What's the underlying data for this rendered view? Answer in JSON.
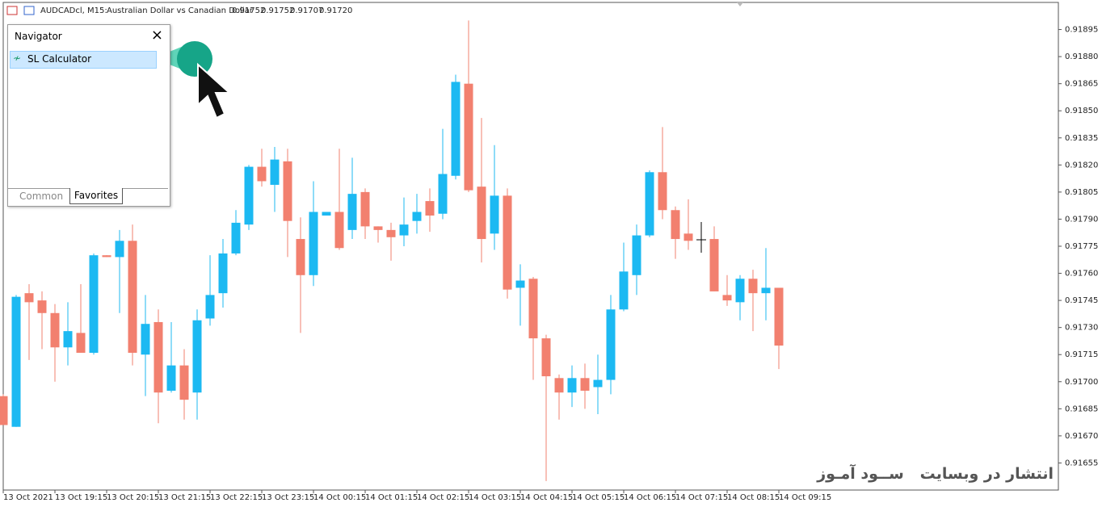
{
  "chart_data": {
    "type": "candlestick",
    "symbol": "AUDCADcl, M15:",
    "description": "Australian Dollar vs Canadian Dollar",
    "header_ohlc": [
      0.91752,
      0.91752,
      0.91707,
      {
        "value": 0.9172,
        "label": "0.91720"
      }
    ],
    "up_color": "#1cb9f2",
    "down_color": "#f2806f",
    "categories": [
      "13 Oct 2021",
      null,
      null,
      null,
      "13 Oct 19:15",
      null,
      null,
      null,
      "13 Oct 20:15",
      null,
      null,
      null,
      "13 Oct 21:15",
      null,
      null,
      null,
      "13 Oct 22:15",
      null,
      null,
      null,
      "13 Oct 23:15",
      null,
      null,
      null,
      "14 Oct 00:15",
      null,
      null,
      null,
      "14 Oct 01:15",
      null,
      null,
      null,
      "14 Oct 02:15",
      null,
      null,
      null,
      "14 Oct 03:15",
      null,
      null,
      null,
      "14 Oct 04:15",
      null,
      null,
      null,
      "14 Oct 05:15",
      null,
      null,
      null,
      "14 Oct 06:15",
      null,
      null,
      null,
      "14 Oct 07:15",
      null,
      null,
      null,
      "14 Oct 08:15",
      null,
      null,
      null,
      "14 Oct 09:15"
    ],
    "open": [
      0.91692,
      0.91675,
      0.91749,
      0.91745,
      0.91738,
      0.91719,
      0.91727,
      0.91716,
      0.9177,
      0.91769,
      0.91778,
      0.91715,
      0.91733,
      0.91695,
      0.91709,
      0.91694,
      0.91735,
      0.91749,
      0.91771,
      0.91787,
      0.91819,
      0.91809,
      0.91822,
      0.91779,
      0.91759,
      0.91792,
      0.91794,
      0.91784,
      0.91805,
      0.91786,
      0.91784,
      0.91781,
      0.91789,
      0.918,
      0.91793,
      0.91814,
      0.91865,
      0.91808,
      0.91782,
      0.91803,
      0.91752,
      0.91757,
      0.91724,
      0.91702,
      0.91694,
      0.91702,
      0.91697,
      0.91701,
      0.9174,
      0.91759,
      0.91781,
      0.91816,
      0.91795,
      0.91782,
      null,
      0.91779,
      0.91748,
      0.91744,
      0.91757,
      0.91749,
      0.91752
    ],
    "high": [
      0.91693,
      0.91748,
      0.91754,
      0.9175,
      0.91743,
      0.91744,
      0.91754,
      0.91771,
      0.9177,
      0.91784,
      0.91787,
      0.91748,
      0.9174,
      0.91733,
      0.91718,
      0.9174,
      0.9177,
      0.91779,
      0.91795,
      0.9182,
      0.91829,
      0.9183,
      0.91829,
      0.91791,
      0.91811,
      0.91794,
      0.91829,
      0.91824,
      0.91807,
      0.91786,
      0.91788,
      0.91802,
      0.91804,
      0.91807,
      0.9184,
      0.9187,
      0.919,
      0.91846,
      0.91831,
      0.91807,
      0.91765,
      0.91758,
      0.91726,
      0.91704,
      0.91709,
      0.9171,
      0.91715,
      0.91748,
      0.91777,
      0.91787,
      0.91817,
      0.91841,
      0.91797,
      0.91801,
      null,
      0.91786,
      0.91759,
      0.91759,
      0.91762,
      0.91774,
      0.91752
    ],
    "low": [
      0.91676,
      0.91675,
      0.91712,
      0.91718,
      0.917,
      0.91709,
      0.91716,
      0.91715,
      0.91769,
      0.91738,
      0.91709,
      0.91692,
      0.91677,
      0.91694,
      0.91679,
      0.91679,
      0.91731,
      0.91741,
      0.9177,
      0.91784,
      0.91808,
      0.91794,
      0.91769,
      0.91727,
      0.91753,
      0.91792,
      0.91773,
      0.91779,
      0.91779,
      0.91777,
      0.91767,
      0.91775,
      0.91782,
      0.91783,
      0.9179,
      0.91812,
      0.91805,
      0.91766,
      0.91773,
      0.91746,
      0.91731,
      0.91701,
      0.91645,
      0.91679,
      0.91686,
      0.91685,
      0.91682,
      0.91693,
      0.91739,
      0.91748,
      0.9178,
      0.9179,
      0.91768,
      0.91773,
      null,
      0.9175,
      0.91742,
      0.91734,
      0.91728,
      0.91734,
      0.91707
    ],
    "close": [
      0.91676,
      0.91747,
      0.91744,
      0.91738,
      0.91719,
      0.91728,
      0.91716,
      0.9177,
      0.91769,
      0.91778,
      0.91716,
      0.91732,
      0.91694,
      0.91709,
      0.9169,
      0.91734,
      0.91748,
      0.91771,
      0.91788,
      0.91819,
      0.91811,
      0.91823,
      0.91789,
      0.91759,
      0.91794,
      0.91794,
      0.91774,
      0.91804,
      0.91786,
      0.91784,
      0.9178,
      0.91787,
      0.91794,
      0.91792,
      0.91815,
      0.91866,
      0.91806,
      0.91779,
      0.91803,
      0.91751,
      0.91756,
      0.91724,
      0.91703,
      0.91694,
      0.91702,
      0.91695,
      0.91701,
      0.9174,
      0.91761,
      0.91781,
      0.91816,
      0.91795,
      0.91779,
      0.91778,
      null,
      0.9175,
      0.91745,
      0.91757,
      0.91749,
      0.91752,
      0.9172
    ],
    "ylim": [
      0.9164,
      0.9191
    ],
    "yticks": [
      0.91895,
      {
        "value": 0.9188,
        "label": "0.91880"
      },
      0.91865,
      {
        "value": 0.9185,
        "label": "0.91850"
      },
      0.91835,
      {
        "value": 0.9182,
        "label": "0.91820"
      },
      0.91805,
      {
        "value": 0.9179,
        "label": "0.91790"
      },
      0.91775,
      {
        "value": 0.9176,
        "label": "0.91760"
      },
      0.91745,
      {
        "value": 0.9173,
        "label": "0.91730"
      },
      0.91715,
      {
        "value": 0.917,
        "label": "0.91700"
      },
      0.91685,
      {
        "value": 0.9167,
        "label": "0.91670"
      },
      0.91655
    ]
  },
  "navigator": {
    "title": "Navigator",
    "item": "SL Calculator",
    "tabs": [
      "Common",
      "Favorites"
    ]
  },
  "watermark": "انتشار در وبسایت   ســود آمـوز"
}
